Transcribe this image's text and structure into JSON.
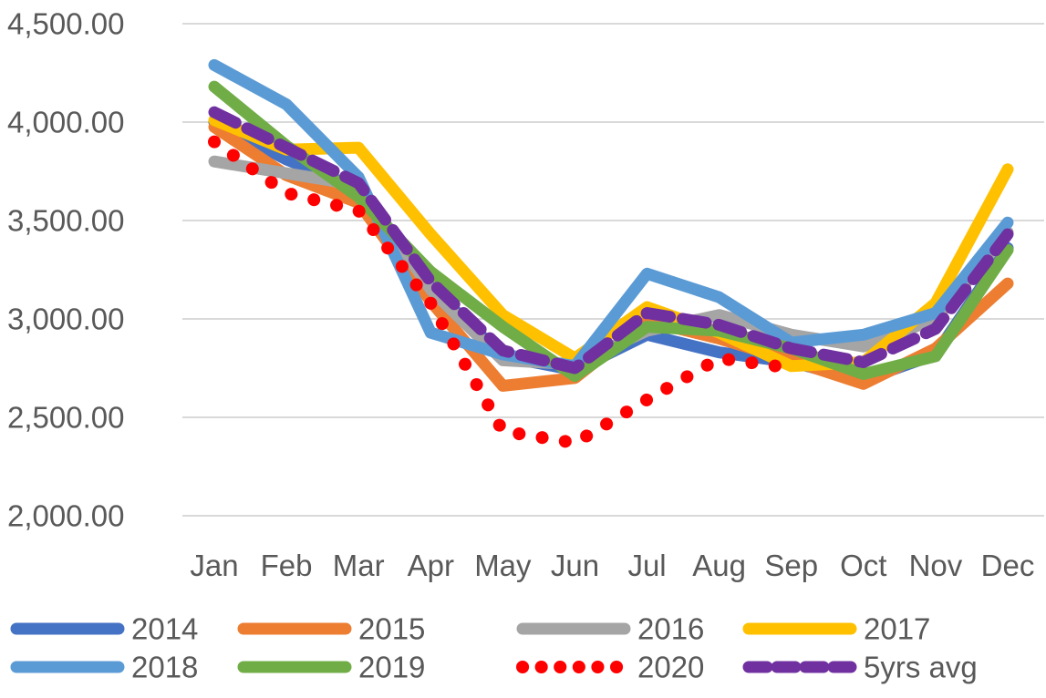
{
  "chart_data": {
    "type": "line",
    "title": "",
    "xlabel": "",
    "ylabel": "",
    "grid": true,
    "gridline_color": "#D9D9D9",
    "text_color": "#595959",
    "background_color": "#FFFFFF",
    "categories": [
      "Jan",
      "Feb",
      "Mar",
      "Apr",
      "May",
      "Jun",
      "Jul",
      "Aug",
      "Sep",
      "Oct",
      "Nov",
      "Dec"
    ],
    "y_axis": {
      "min": 2000,
      "max": 4500,
      "tick_step": 500,
      "ticks": [
        {
          "value": 4500,
          "label": "4,500.00"
        },
        {
          "value": 4000,
          "label": "4,000.00"
        },
        {
          "value": 3500,
          "label": "3,500.00"
        },
        {
          "value": 3000,
          "label": "3,000.00"
        },
        {
          "value": 2500,
          "label": "2,500.00"
        },
        {
          "value": 2000,
          "label": "2,000.00"
        }
      ]
    },
    "series": [
      {
        "name": "2014",
        "color": "#4472C4",
        "style": "solid",
        "values": [
          4000,
          3810,
          3660,
          3160,
          2810,
          2740,
          2920,
          2830,
          2780,
          2690,
          2820,
          3360
        ]
      },
      {
        "name": "2015",
        "color": "#ED7D31",
        "style": "solid",
        "values": [
          3975,
          3730,
          3590,
          3090,
          2660,
          2700,
          2990,
          2900,
          2790,
          2670,
          2850,
          3180
        ]
      },
      {
        "name": "2016",
        "color": "#A5A5A5",
        "style": "solid",
        "values": [
          3800,
          3740,
          3680,
          3150,
          2790,
          2770,
          2940,
          3020,
          2920,
          2860,
          3000,
          3440
        ]
      },
      {
        "name": "2017",
        "color": "#FFC000",
        "style": "solid",
        "values": [
          4010,
          3860,
          3870,
          3430,
          3020,
          2800,
          3060,
          2930,
          2760,
          2780,
          3080,
          3760
        ]
      },
      {
        "name": "2018",
        "color": "#5B9BD5",
        "style": "solid",
        "values": [
          4290,
          4090,
          3720,
          2930,
          2820,
          2760,
          3230,
          3110,
          2880,
          2920,
          3030,
          3490
        ]
      },
      {
        "name": "2019",
        "color": "#70AD47",
        "style": "solid",
        "values": [
          4180,
          3880,
          3620,
          3240,
          2960,
          2710,
          2960,
          2940,
          2850,
          2720,
          2810,
          3350
        ]
      },
      {
        "name": "2020",
        "color": "#FF0000",
        "style": "dotted",
        "values": [
          3900,
          3640,
          3550,
          3080,
          2430,
          2370,
          2590,
          2800,
          2750
        ]
      },
      {
        "name": "5yrs avg",
        "color": "#7030A0",
        "style": "dashed",
        "values": [
          4050,
          3870,
          3690,
          3190,
          2840,
          2750,
          3030,
          2970,
          2850,
          2780,
          2950,
          3430
        ]
      }
    ],
    "legend": {
      "position": "bottom",
      "rows": [
        [
          "2014",
          "2015",
          "2016",
          "2017"
        ],
        [
          "2018",
          "2019",
          "2020",
          "5yrs avg"
        ]
      ]
    }
  }
}
